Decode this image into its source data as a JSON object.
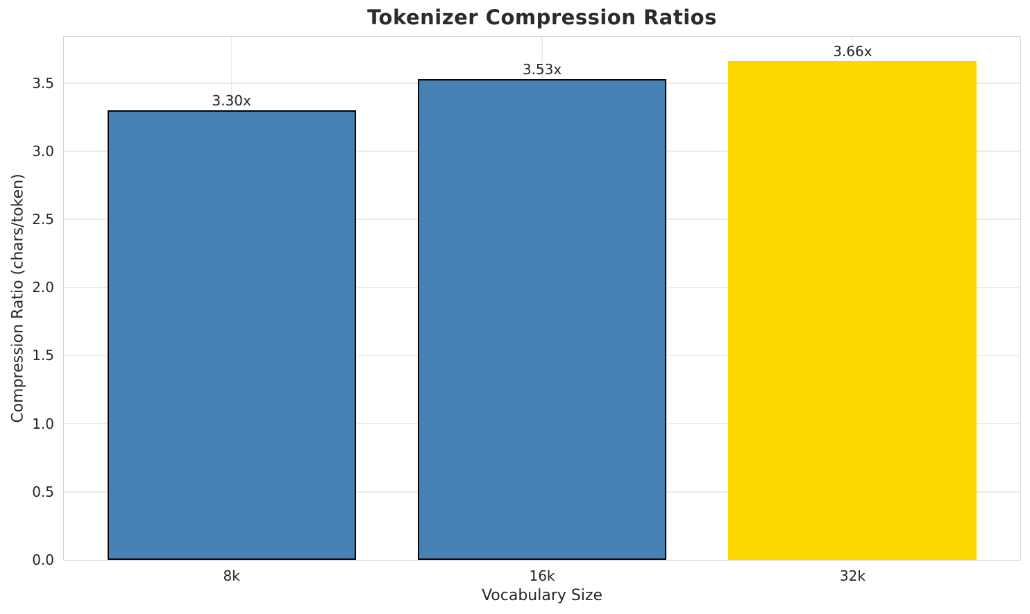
{
  "chart_data": {
    "type": "bar",
    "title": "Tokenizer Compression Ratios",
    "xlabel": "Vocabulary Size",
    "ylabel": "Compression Ratio (chars/token)",
    "categories": [
      "8k",
      "16k",
      "32k"
    ],
    "values": [
      3.3,
      3.53,
      3.66
    ],
    "value_labels": [
      "3.30x",
      "3.53x",
      "3.66x"
    ],
    "bar_colors": [
      "#4682B4",
      "#4682B4",
      "#FFD700"
    ],
    "bar_edge_colors": [
      "#000000",
      "#000000",
      "none"
    ],
    "ylim": [
      0,
      3.84
    ],
    "xlim": [
      -0.54,
      2.54
    ],
    "bar_width": 0.8,
    "yticks": [
      0.0,
      0.5,
      1.0,
      1.5,
      2.0,
      2.5,
      3.0,
      3.5
    ],
    "ytick_labels": [
      "0.0",
      "0.5",
      "1.0",
      "1.5",
      "2.0",
      "2.5",
      "3.0",
      "3.5"
    ],
    "grid": "both",
    "legend": "none",
    "background_color": "#ffffff",
    "grid_color": "#ebebeb",
    "spine_color": "#d4d4d4",
    "text_color": "#262626"
  }
}
